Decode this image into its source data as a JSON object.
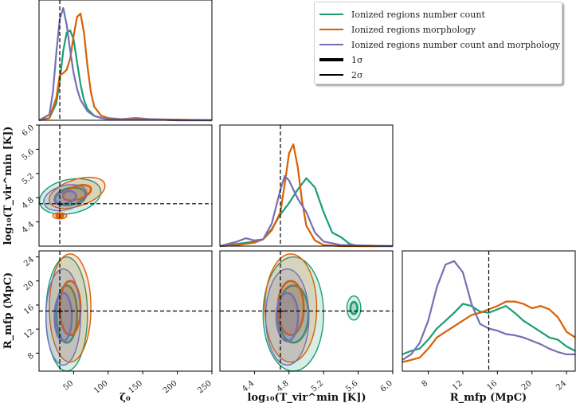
{
  "chart_data": {
    "type": "corner",
    "parameters": [
      "zeta0",
      "logTvir",
      "Rmfp"
    ],
    "axis_labels": {
      "zeta0": "ζ₀",
      "logTvir": "log₁₀(T_vir^min [K])",
      "Rmfp": "R_mfp (MpC)"
    },
    "ranges": {
      "zeta0": [
        0,
        250
      ],
      "logTvir": [
        4.0,
        6.0
      ],
      "Rmfp": [
        5,
        25
      ]
    },
    "ticks": {
      "zeta0": [
        "50",
        "100",
        "150",
        "200",
        "250"
      ],
      "zeta0_values": [
        50,
        100,
        150,
        200,
        250
      ],
      "logTvir": [
        "4.4",
        "4.8",
        "5.2",
        "5.6",
        "6.0"
      ],
      "logTvir_values": [
        4.4,
        4.8,
        5.2,
        5.6,
        6.0
      ],
      "Rmfp": [
        "8",
        "12",
        "16",
        "20",
        "24"
      ],
      "Rmfp_values": [
        8,
        12,
        16,
        20,
        24
      ]
    },
    "truth": {
      "zeta0": 30,
      "logTvir": 4.7,
      "Rmfp": 15
    },
    "series": [
      {
        "name": "Ionized regions number count",
        "color": "#1b9e77",
        "zeta0_marginal": {
          "x": [
            0,
            15,
            25,
            30,
            35,
            40,
            45,
            50,
            55,
            60,
            65,
            70,
            80,
            90,
            100,
            120,
            140,
            160,
            200,
            250
          ],
          "y": [
            0,
            0.02,
            0.15,
            0.35,
            0.62,
            0.78,
            0.8,
            0.72,
            0.52,
            0.32,
            0.18,
            0.1,
            0.04,
            0.02,
            0.01,
            0.01,
            0.02,
            0.01,
            0,
            0
          ]
        },
        "logTvir_marginal": {
          "x": [
            4.0,
            4.2,
            4.4,
            4.5,
            4.6,
            4.7,
            4.8,
            4.9,
            5.0,
            5.1,
            5.2,
            5.3,
            5.4,
            5.5,
            5.6,
            6.0
          ],
          "y": [
            0,
            0.02,
            0.04,
            0.06,
            0.15,
            0.28,
            0.38,
            0.5,
            0.6,
            0.52,
            0.3,
            0.12,
            0.08,
            0.02,
            0,
            0
          ]
        },
        "Rmfp_marginal": {
          "x": [
            5,
            6,
            7,
            8,
            9,
            10,
            11,
            12,
            13,
            14,
            15,
            16,
            17,
            18,
            19,
            20,
            21,
            22,
            23,
            24,
            25
          ],
          "y": [
            0.15,
            0.18,
            0.2,
            0.28,
            0.38,
            0.45,
            0.52,
            0.6,
            0.58,
            0.53,
            0.52,
            0.55,
            0.58,
            0.52,
            0.45,
            0.4,
            0.35,
            0.3,
            0.28,
            0.22,
            0.18
          ]
        }
      },
      {
        "name": "Ionized regions morphology",
        "color": "#d95f02",
        "zeta0_marginal": {
          "x": [
            0,
            15,
            25,
            30,
            35,
            40,
            45,
            50,
            55,
            60,
            65,
            70,
            75,
            80,
            90,
            100,
            120,
            140,
            160,
            250
          ],
          "y": [
            0,
            0.02,
            0.2,
            0.4,
            0.42,
            0.45,
            0.55,
            0.75,
            0.92,
            0.95,
            0.78,
            0.48,
            0.25,
            0.12,
            0.04,
            0.02,
            0.01,
            0.02,
            0.01,
            0
          ]
        },
        "logTvir_marginal": {
          "x": [
            4.0,
            4.2,
            4.4,
            4.5,
            4.6,
            4.7,
            4.75,
            4.8,
            4.85,
            4.9,
            4.95,
            5.0,
            5.1,
            5.2,
            5.4,
            6.0
          ],
          "y": [
            0,
            0.01,
            0.03,
            0.06,
            0.14,
            0.3,
            0.55,
            0.82,
            0.9,
            0.7,
            0.4,
            0.18,
            0.05,
            0.01,
            0,
            0
          ]
        },
        "Rmfp_marginal": {
          "x": [
            5,
            6,
            7,
            8,
            9,
            10,
            11,
            12,
            13,
            14,
            15,
            16,
            17,
            18,
            19,
            20,
            21,
            22,
            23,
            24,
            25
          ],
          "y": [
            0.08,
            0.1,
            0.12,
            0.2,
            0.3,
            0.35,
            0.4,
            0.45,
            0.5,
            0.52,
            0.55,
            0.58,
            0.62,
            0.62,
            0.6,
            0.56,
            0.58,
            0.55,
            0.48,
            0.35,
            0.3
          ]
        }
      },
      {
        "name": "Ionized regions number count and morphology",
        "color": "#7570b3",
        "zeta0_marginal": {
          "x": [
            0,
            15,
            20,
            25,
            30,
            35,
            40,
            45,
            50,
            55,
            60,
            70,
            80,
            90,
            100,
            120,
            140,
            160,
            200,
            250
          ],
          "y": [
            0,
            0.05,
            0.25,
            0.6,
            0.9,
            1.0,
            0.85,
            0.62,
            0.42,
            0.28,
            0.18,
            0.08,
            0.04,
            0.02,
            0.01,
            0.01,
            0.01,
            0.01,
            0,
            0
          ]
        },
        "logTvir_marginal": {
          "x": [
            4.0,
            4.2,
            4.3,
            4.4,
            4.5,
            4.6,
            4.7,
            4.75,
            4.8,
            4.85,
            4.9,
            5.0,
            5.1,
            5.2,
            5.4,
            6.0
          ],
          "y": [
            0,
            0.04,
            0.07,
            0.05,
            0.06,
            0.2,
            0.5,
            0.62,
            0.58,
            0.5,
            0.42,
            0.3,
            0.12,
            0.04,
            0.01,
            0
          ]
        },
        "Rmfp_marginal": {
          "x": [
            5,
            6,
            7,
            8,
            9,
            10,
            11,
            12,
            13,
            14,
            15,
            16,
            17,
            18,
            19,
            20,
            21,
            22,
            23,
            24,
            25
          ],
          "y": [
            0.1,
            0.15,
            0.25,
            0.45,
            0.75,
            0.95,
            0.98,
            0.88,
            0.6,
            0.42,
            0.38,
            0.36,
            0.33,
            0.32,
            0.3,
            0.27,
            0.24,
            0.2,
            0.17,
            0.15,
            0.15
          ]
        }
      }
    ],
    "legend": {
      "position": "top-right",
      "entries": [
        "Ionized regions number count",
        "Ionized regions morphology",
        "Ionized regions number count and morphology",
        "1σ",
        "2σ"
      ]
    }
  },
  "legend_sigma1": "1σ",
  "legend_sigma2": "2σ"
}
